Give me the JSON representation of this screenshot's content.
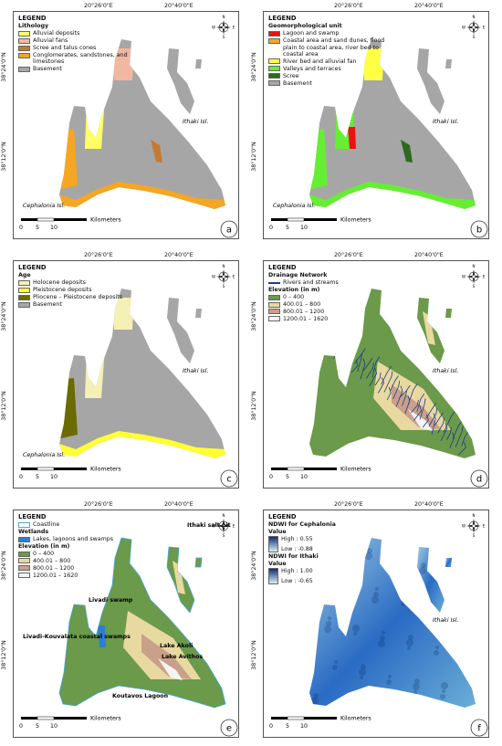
{
  "graticule": {
    "lon": [
      "20°26'0\"E",
      "20°40'0\"E"
    ],
    "lat": [
      "38°24'0\"N",
      "38°12'0\"N"
    ]
  },
  "compass": {
    "n": "N",
    "s": "S",
    "e": "E",
    "w": "W"
  },
  "scale_bar": {
    "unit": "Kilometers",
    "ticks": [
      0,
      5,
      10
    ]
  },
  "panels": [
    {
      "letter": "a",
      "legend": "LEGEND",
      "sections": [
        {
          "title": "Lithology",
          "items": [
            {
              "label": "Alluvial deposits",
              "color": "#ffff66"
            },
            {
              "label": "Alluvial fans",
              "color": "#f2b7a0"
            },
            {
              "label": "Scree and talus cones",
              "color": "#c47a35"
            },
            {
              "label": "Conglomerates, sandstones, and limestones",
              "color": "#f5a623"
            },
            {
              "label": "Basement",
              "color": "#a6a6a6"
            }
          ]
        }
      ],
      "labels": [
        "Ithaki Isl.",
        "Cephalonia Isl."
      ]
    },
    {
      "letter": "b",
      "legend": "LEGEND",
      "sections": [
        {
          "title": "Geomorphological unit",
          "items": [
            {
              "label": "Lagoon and swamp",
              "color": "#ee1111"
            },
            {
              "label": "Coastal area and sand dunes, flood plain to coastal area, river bed to coastal area",
              "color": "#f5a623"
            },
            {
              "label": "River bed and alluvial fan",
              "color": "#ffff44"
            },
            {
              "label": "Valleys and terraces",
              "color": "#66ee33"
            },
            {
              "label": "Scree",
              "color": "#2d6a1e"
            },
            {
              "label": "Basement",
              "color": "#a6a6a6"
            }
          ]
        }
      ],
      "labels": [
        "Ithaki Isl.",
        "Cephalonia Isl."
      ]
    },
    {
      "letter": "c",
      "legend": "LEGEND",
      "sections": [
        {
          "title": "Age",
          "items": [
            {
              "label": "Holocene deposits",
              "color": "#f5f0b5"
            },
            {
              "label": "Pleistocene deposits",
              "color": "#ffff33"
            },
            {
              "label": "Pliocene – Pleistocene deposits",
              "color": "#6b6b00"
            },
            {
              "label": "Basement",
              "color": "#a6a6a6"
            }
          ]
        }
      ],
      "labels": [
        "Ithaki Isl.",
        "Cephalonia Isl."
      ]
    },
    {
      "letter": "d",
      "legend": "LEGEND",
      "sections": [
        {
          "title": "Drainage Network",
          "items": [
            {
              "label": "Rivers and streams",
              "color": "#1f3a8a",
              "kind": "line"
            }
          ]
        },
        {
          "title": "Elevation (in m)",
          "items": [
            {
              "label": "0 – 400",
              "color": "#6a9a4a"
            },
            {
              "label": "400.01 – 800",
              "color": "#e8d9a0"
            },
            {
              "label": "800.01 – 1200",
              "color": "#c9a08a"
            },
            {
              "label": "1200.01 – 1620",
              "color": "#f4f4f4"
            }
          ]
        }
      ],
      "labels": [
        "Ithaki Isl."
      ]
    },
    {
      "letter": "e",
      "legend": "LEGEND",
      "sections": [
        {
          "title": "",
          "items": [
            {
              "label": "Coastline",
              "color": "#4aa8d8",
              "kind": "outline"
            }
          ]
        },
        {
          "title": "Wetlands",
          "items": [
            {
              "label": "Lakes, lagoons and swamps",
              "color": "#2a7fd4"
            }
          ]
        },
        {
          "title": "Elevation (in m)",
          "items": [
            {
              "label": "0 – 400",
              "color": "#6a9a4a"
            },
            {
              "label": "400.01 – 800",
              "color": "#e8d9a0"
            },
            {
              "label": "800.01 – 1200",
              "color": "#c9a08a"
            },
            {
              "label": "1200.01 – 1620",
              "color": "#f4f4f4"
            }
          ]
        }
      ],
      "labels": [
        "Ithaki salt pit",
        "Livadi swamp",
        "Livadi-Kouvalata coastal swamps",
        "Lake Akoli",
        "Lake Avithos",
        "Koutavos Lagoon"
      ]
    },
    {
      "letter": "f",
      "legend": "LEGEND",
      "ramps": [
        {
          "title": "NDWI for Cephalonia",
          "subtitle": "Value",
          "high": "High : 0.55",
          "low": "Low : -0.88",
          "colors": [
            "#08306b",
            "#deebf7"
          ]
        },
        {
          "title": "NDWI for Ithaki",
          "subtitle": "Value",
          "high": "High : 1.00",
          "low": "Low : -0.65",
          "colors": [
            "#08306b",
            "#deebf7"
          ]
        }
      ],
      "labels": [
        "Ithaki Isl."
      ]
    }
  ]
}
